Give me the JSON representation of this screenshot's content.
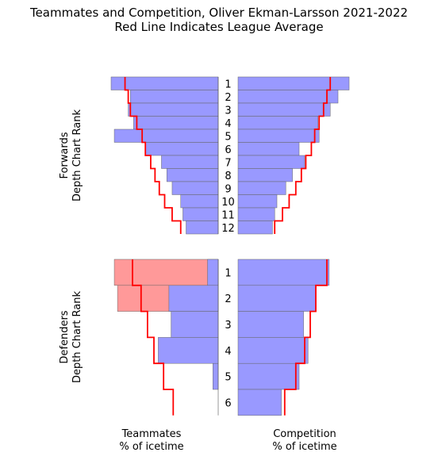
{
  "chart_data": {
    "type": "bar",
    "title": "Teammates and Competition, Oliver Ekman-Larsson 2021-2022",
    "subtitle": "Red Line Indicates League Average",
    "xlabel_left": "Teammates\n% of icetime",
    "xlabel_right": "Competition\n% of icetime",
    "xlim": [
      0,
      100
    ],
    "colors": {
      "bar": "#9999ff",
      "highlight": "#ff9999",
      "league_line": "#ff0000"
    },
    "groups": [
      {
        "name": "forwards",
        "ylabel": "Forwards\nDepth Chart Rank",
        "ranks": [
          "1",
          "2",
          "3",
          "4",
          "5",
          "6",
          "7",
          "8",
          "9",
          "10",
          "11",
          "12"
        ],
        "teammates": [
          100,
          82,
          84,
          79,
          97,
          68,
          53,
          48,
          43,
          35,
          33,
          30
        ],
        "competition": [
          100,
          90,
          83,
          72,
          73,
          55,
          60,
          49,
          43,
          35,
          33,
          31
        ],
        "highlight": [],
        "league_teammates": [
          87,
          84,
          82,
          76,
          71,
          68,
          63,
          59,
          55,
          50,
          43,
          35
        ],
        "league_competition": [
          83,
          80,
          77,
          73,
          69,
          66,
          61,
          57,
          52,
          46,
          40,
          33
        ]
      },
      {
        "name": "defenders",
        "ylabel": "Defenders\nDepth Chart Rank",
        "ranks": [
          "1",
          "2",
          "3",
          "4",
          "5",
          "6"
        ],
        "teammates": [
          10,
          46,
          44,
          56,
          5,
          0
        ],
        "competition": [
          82,
          70,
          59,
          63,
          55,
          39
        ],
        "highlight_teammates": [
          97,
          94,
          0,
          0,
          0,
          0
        ],
        "league_teammates": [
          80,
          72,
          66,
          60,
          51,
          42
        ],
        "league_competition": [
          80,
          70,
          65,
          60,
          52,
          42
        ]
      }
    ]
  }
}
